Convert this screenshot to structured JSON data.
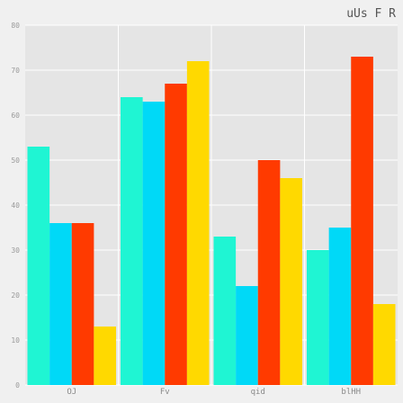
{
  "chart_data": {
    "type": "bar",
    "title": "uUs F R",
    "xlabel": "",
    "ylabel": "",
    "categories": [
      "OJ",
      "Fv",
      "qid",
      "blHH"
    ],
    "series": [
      {
        "values": [
          53,
          64,
          33,
          30
        ]
      },
      {
        "values": [
          36,
          63,
          22,
          35
        ]
      },
      {
        "values": [
          36,
          67,
          50,
          73
        ]
      },
      {
        "values": [
          13,
          72,
          46,
          18
        ]
      }
    ],
    "ylim": [
      0,
      80
    ],
    "yticks": [
      0,
      10,
      20,
      30,
      40,
      50,
      60,
      70,
      80
    ],
    "grid": true,
    "legend": "none",
    "colors": {
      "series": [
        "#1ff5d3",
        "#00d9f7",
        "#ff3a00",
        "#ffd900"
      ],
      "plot_background": "#e5e5e5",
      "page_background": "#f0f0f0",
      "grid": "#ffffff"
    }
  }
}
